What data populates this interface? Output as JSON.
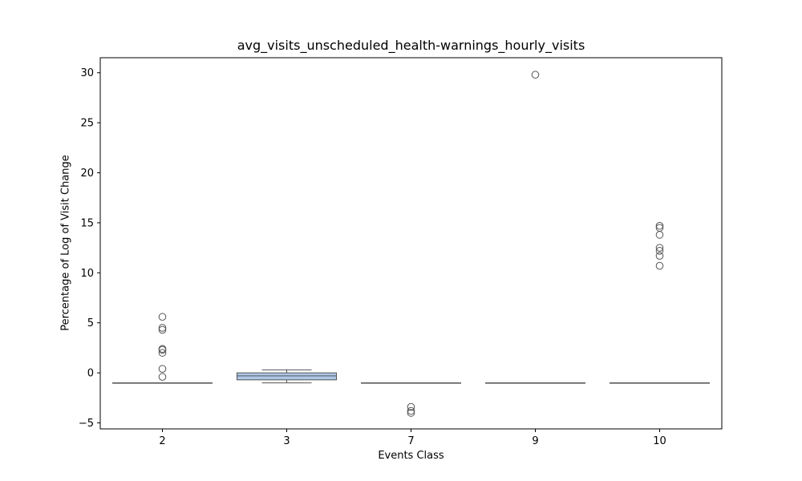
{
  "chart_data": {
    "type": "box",
    "title": "avg_visits_unscheduled_health-warnings_hourly_visits",
    "xlabel": "Events Class",
    "ylabel": "Percentage of Log of Visit Change",
    "categories": [
      "2",
      "3",
      "7",
      "9",
      "10"
    ],
    "ylim": [
      -5.6,
      31.5
    ],
    "yticks": [
      -5,
      0,
      5,
      10,
      15,
      20,
      25,
      30
    ],
    "ytick_labels": [
      "−5",
      "0",
      "5",
      "10",
      "15",
      "20",
      "25",
      "30"
    ],
    "grid": false,
    "legend": "none",
    "box_color": "#aec7e8",
    "line_color": "#555555",
    "boxes": [
      {
        "category": "2",
        "q1": -1.0,
        "median": -1.0,
        "q3": -1.0,
        "whisker_low": -1.0,
        "whisker_high": -1.0,
        "outliers": [
          5.6,
          4.5,
          4.3,
          2.4,
          2.3,
          2.0,
          0.4,
          -0.4
        ]
      },
      {
        "category": "3",
        "q1": -0.7,
        "median": -0.3,
        "q3": 0.0,
        "whisker_low": -1.0,
        "whisker_high": 0.3,
        "outliers": []
      },
      {
        "category": "7",
        "q1": -1.0,
        "median": -1.0,
        "q3": -1.0,
        "whisker_low": -1.0,
        "whisker_high": -1.0,
        "outliers": [
          -3.4,
          -3.8,
          -4.0
        ]
      },
      {
        "category": "9",
        "q1": -1.0,
        "median": -1.0,
        "q3": -1.0,
        "whisker_low": -1.0,
        "whisker_high": -1.0,
        "outliers": [
          29.8
        ]
      },
      {
        "category": "10",
        "q1": -1.0,
        "median": -1.0,
        "q3": -1.0,
        "whisker_low": -1.0,
        "whisker_high": -1.0,
        "outliers": [
          14.7,
          14.5,
          13.8,
          12.5,
          12.2,
          11.7,
          10.7
        ]
      }
    ]
  }
}
